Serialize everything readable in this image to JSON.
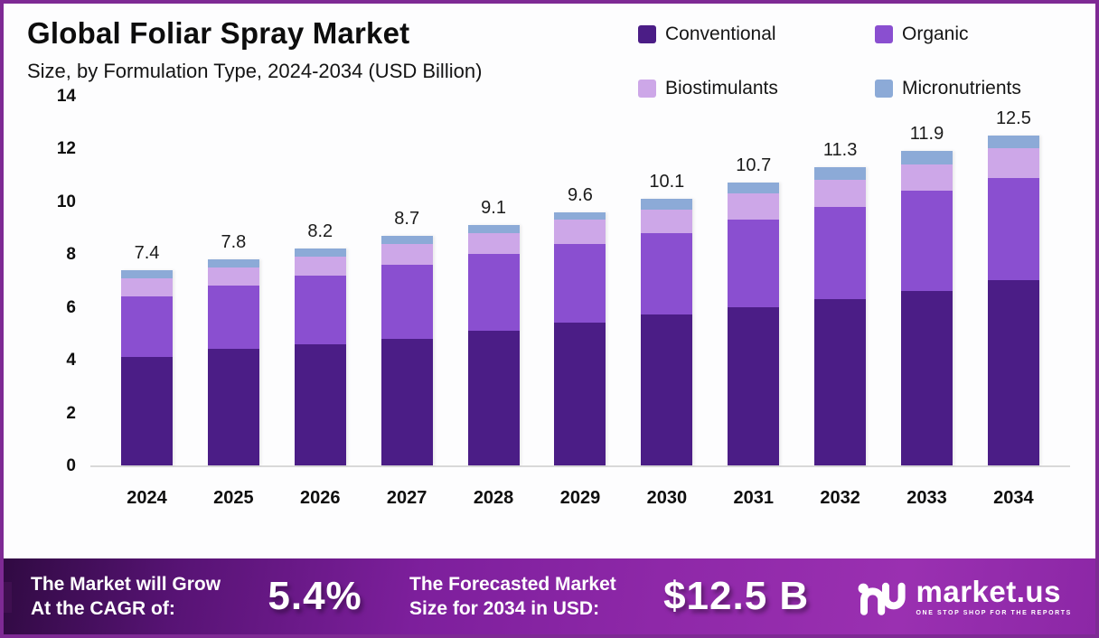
{
  "header": {
    "title": "Global Foliar Spray Market",
    "subtitle": "Size, by Formulation Type, 2024-2034 (USD Billion)"
  },
  "legend": {
    "items": [
      {
        "label": "Conventional",
        "color": "#4B1D86"
      },
      {
        "label": "Organic",
        "color": "#8A4FD0"
      },
      {
        "label": "Biostimulants",
        "color": "#CDA7E8"
      },
      {
        "label": "Micronutrients",
        "color": "#8CAAD7"
      }
    ]
  },
  "chart_data": {
    "type": "bar",
    "stacked": true,
    "title": "Global Foliar Spray Market Size, by Formulation Type, 2024-2034 (USD Billion)",
    "categories": [
      "2024",
      "2025",
      "2026",
      "2027",
      "2028",
      "2029",
      "2030",
      "2031",
      "2032",
      "2033",
      "2034"
    ],
    "series": [
      {
        "name": "Conventional",
        "color": "#4B1D86",
        "values": [
          4.1,
          4.4,
          4.6,
          4.8,
          5.1,
          5.4,
          5.7,
          6.0,
          6.3,
          6.6,
          7.0
        ]
      },
      {
        "name": "Organic",
        "color": "#8A4FD0",
        "values": [
          2.3,
          2.4,
          2.6,
          2.8,
          2.9,
          3.0,
          3.1,
          3.3,
          3.5,
          3.8,
          3.9
        ]
      },
      {
        "name": "Biostimulants",
        "color": "#CDA7E8",
        "values": [
          0.7,
          0.7,
          0.7,
          0.8,
          0.8,
          0.9,
          0.9,
          1.0,
          1.0,
          1.0,
          1.1
        ]
      },
      {
        "name": "Micronutrients",
        "color": "#8CAAD7",
        "values": [
          0.3,
          0.3,
          0.3,
          0.3,
          0.3,
          0.3,
          0.4,
          0.4,
          0.5,
          0.5,
          0.5
        ]
      }
    ],
    "totals": [
      "7.4",
      "7.8",
      "8.2",
      "8.7",
      "9.1",
      "9.6",
      "10.1",
      "10.7",
      "11.3",
      "11.9",
      "12.5"
    ],
    "xlabel": "",
    "ylabel": "",
    "ylim": [
      0,
      14
    ],
    "yticks": [
      0,
      2,
      4,
      6,
      8,
      10,
      12,
      14
    ],
    "grid": false,
    "legend_position": "top-right"
  },
  "banner": {
    "cagr_label_line1": "The Market will Grow",
    "cagr_label_line2": "At the CAGR of:",
    "cagr_value": "5.4%",
    "forecast_label_line1": "The Forecasted Market",
    "forecast_label_line2": "Size for 2034 in USD:",
    "forecast_value": "$12.5 B",
    "brand": "market.us",
    "brand_tagline": "ONE STOP SHOP FOR THE REPORTS"
  },
  "colors": {
    "frame_border": "#7E2A94",
    "background": "#FDFDFE",
    "axis_line": "#D9D9D9",
    "banner_gradient_start": "#300A42",
    "banner_gradient_end": "#8C27A6",
    "text": "#0E0E0E"
  }
}
